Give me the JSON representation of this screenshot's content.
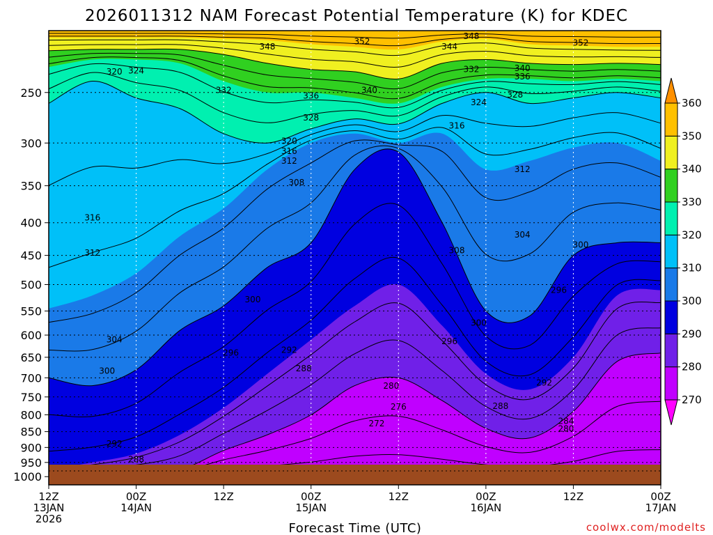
{
  "chart_data": {
    "type": "heatmap",
    "title": "2026011312 NAM Forecast Potential Temperature (K) for KDEC",
    "xlabel": "Forecast Time (UTC)",
    "credit": "coolwx.com/modelts",
    "x_ticks": [
      {
        "hour": 0,
        "line1": "12Z",
        "line2": "13JAN",
        "line3": "2026"
      },
      {
        "hour": 12,
        "line1": "00Z",
        "line2": "14JAN",
        "line3": ""
      },
      {
        "hour": 24,
        "line1": "12Z",
        "line2": "",
        "line3": ""
      },
      {
        "hour": 36,
        "line1": "00Z",
        "line2": "15JAN",
        "line3": ""
      },
      {
        "hour": 48,
        "line1": "12Z",
        "line2": "",
        "line3": ""
      },
      {
        "hour": 60,
        "line1": "00Z",
        "line2": "16JAN",
        "line3": ""
      },
      {
        "hour": 72,
        "line1": "12Z",
        "line2": "",
        "line3": ""
      },
      {
        "hour": 84,
        "line1": "00Z",
        "line2": "17JAN",
        "line3": ""
      }
    ],
    "y_ticks": [
      250,
      300,
      350,
      400,
      450,
      500,
      550,
      600,
      650,
      700,
      750,
      800,
      850,
      900,
      950,
      1000
    ],
    "y_axis": "pressure (hPa), log scale",
    "y_range": [
      200,
      1030
    ],
    "x_range": [
      0,
      84
    ],
    "surface_pressure": 975,
    "colorbar": {
      "levels": [
        270,
        280,
        290,
        300,
        310,
        320,
        330,
        340,
        350,
        360
      ],
      "colors": [
        "#ff00ff",
        "#c000ff",
        "#7020e8",
        "#0000e0",
        "#1a7ae8",
        "#00c0f8",
        "#00f0b0",
        "#30d020",
        "#f0f020",
        "#ffc000",
        "#ff9000"
      ]
    },
    "series": [
      {
        "name": "270K",
        "pressure_by_hour": [
          990,
          990,
          990,
          990,
          990,
          990,
          990,
          990,
          990,
          990,
          990,
          990,
          990,
          990,
          990
        ]
      },
      {
        "name": "280K",
        "pressure_by_hour": [
          990,
          990,
          985,
          975,
          910,
          860,
          800,
          720,
          700,
          760,
          840,
          870,
          790,
          660,
          640
        ]
      },
      {
        "name": "290K",
        "pressure_by_hour": [
          975,
          950,
          920,
          860,
          780,
          690,
          610,
          540,
          500,
          580,
          690,
          730,
          650,
          520,
          510
        ]
      },
      {
        "name": "300K",
        "pressure_by_hour": [
          700,
          720,
          680,
          590,
          540,
          470,
          430,
          330,
          310,
          400,
          550,
          560,
          450,
          430,
          430
        ]
      },
      {
        "name": "310K",
        "pressure_by_hour": [
          545,
          520,
          480,
          420,
          380,
          330,
          300,
          290,
          300,
          290,
          330,
          320,
          305,
          300,
          320
        ]
      },
      {
        "name": "320K",
        "pressure_by_hour": [
          260,
          240,
          255,
          265,
          290,
          300,
          285,
          275,
          280,
          260,
          250,
          260,
          255,
          250,
          255
        ]
      },
      {
        "name": "330K",
        "pressure_by_hour": [
          228,
          222,
          222,
          225,
          240,
          250,
          250,
          255,
          260,
          245,
          238,
          238,
          240,
          238,
          240
        ]
      },
      {
        "name": "340K",
        "pressure_by_hour": [
          215,
          214,
          214,
          214,
          218,
          225,
          230,
          232,
          238,
          225,
          222,
          225,
          226,
          225,
          226
        ]
      },
      {
        "name": "350K",
        "pressure_by_hour": [
          205,
          205,
          205,
          205,
          206,
          207,
          210,
          212,
          214,
          208,
          206,
          210,
          211,
          212,
          212
        ]
      },
      {
        "name": "360K",
        "pressure_by_hour": [
          200,
          200,
          200,
          200,
          200,
          200,
          200,
          200,
          200,
          200,
          200,
          200,
          200,
          200,
          200
        ]
      }
    ],
    "contour_labels": [
      {
        "text": "320",
        "hour": 9,
        "pressure": 232
      },
      {
        "text": "324",
        "hour": 12,
        "pressure": 231
      },
      {
        "text": "348",
        "hour": 30,
        "pressure": 212
      },
      {
        "text": "352",
        "hour": 43,
        "pressure": 208
      },
      {
        "text": "344",
        "hour": 55,
        "pressure": 212
      },
      {
        "text": "348",
        "hour": 58,
        "pressure": 204
      },
      {
        "text": "352",
        "hour": 73,
        "pressure": 209
      },
      {
        "text": "340",
        "hour": 65,
        "pressure": 229
      },
      {
        "text": "336",
        "hour": 65,
        "pressure": 236
      },
      {
        "text": "332",
        "hour": 58,
        "pressure": 230
      },
      {
        "text": "328",
        "hour": 64,
        "pressure": 252
      },
      {
        "text": "324",
        "hour": 59,
        "pressure": 259
      },
      {
        "text": "332",
        "hour": 24,
        "pressure": 248
      },
      {
        "text": "336",
        "hour": 36,
        "pressure": 253
      },
      {
        "text": "340",
        "hour": 44,
        "pressure": 248
      },
      {
        "text": "328",
        "hour": 36,
        "pressure": 274
      },
      {
        "text": "320",
        "hour": 33,
        "pressure": 298
      },
      {
        "text": "316",
        "hour": 33,
        "pressure": 309
      },
      {
        "text": "312",
        "hour": 33,
        "pressure": 320
      },
      {
        "text": "316",
        "hour": 56,
        "pressure": 282
      },
      {
        "text": "312",
        "hour": 65,
        "pressure": 330
      },
      {
        "text": "308",
        "hour": 34,
        "pressure": 346
      },
      {
        "text": "316",
        "hour": 6,
        "pressure": 393
      },
      {
        "text": "312",
        "hour": 6,
        "pressure": 446
      },
      {
        "text": "304",
        "hour": 65,
        "pressure": 418
      },
      {
        "text": "300",
        "hour": 73,
        "pressure": 433
      },
      {
        "text": "308",
        "hour": 56,
        "pressure": 442
      },
      {
        "text": "300",
        "hour": 28,
        "pressure": 528
      },
      {
        "text": "296",
        "hour": 70,
        "pressure": 510
      },
      {
        "text": "300",
        "hour": 59,
        "pressure": 574
      },
      {
        "text": "304",
        "hour": 9,
        "pressure": 610
      },
      {
        "text": "296",
        "hour": 25,
        "pressure": 640
      },
      {
        "text": "292",
        "hour": 33,
        "pressure": 633
      },
      {
        "text": "296",
        "hour": 55,
        "pressure": 614
      },
      {
        "text": "300",
        "hour": 8,
        "pressure": 683
      },
      {
        "text": "288",
        "hour": 35,
        "pressure": 677
      },
      {
        "text": "292",
        "hour": 68,
        "pressure": 713
      },
      {
        "text": "280",
        "hour": 47,
        "pressure": 721
      },
      {
        "text": "288",
        "hour": 62,
        "pressure": 775
      },
      {
        "text": "276",
        "hour": 48,
        "pressure": 777
      },
      {
        "text": "272",
        "hour": 45,
        "pressure": 826
      },
      {
        "text": "284",
        "hour": 71,
        "pressure": 818
      },
      {
        "text": "280",
        "hour": 71,
        "pressure": 841
      },
      {
        "text": "292",
        "hour": 9,
        "pressure": 888
      },
      {
        "text": "288",
        "hour": 12,
        "pressure": 940
      }
    ]
  }
}
